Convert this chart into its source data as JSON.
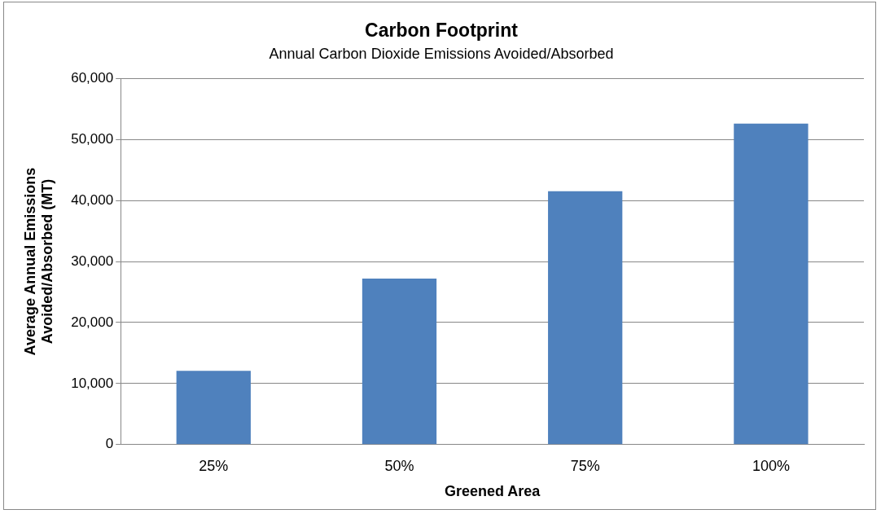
{
  "chart_data": {
    "type": "bar",
    "title": "Carbon Footprint",
    "subtitle": "Annual Carbon Dioxide Emissions Avoided/Absorbed",
    "xlabel": "Greened Area",
    "ylabel": "Average Annual Emissions Avoided/Absorbed (MT)",
    "categories": [
      "25%",
      "50%",
      "75%",
      "100%"
    ],
    "series": [
      {
        "color": "#4f81bd",
        "values": [
          12100,
          27200,
          41500,
          52600
        ]
      }
    ],
    "ylim": [
      0,
      60000
    ],
    "yticks": [
      {
        "value": 0,
        "label": "0"
      },
      {
        "value": 10000,
        "label": "10,000"
      },
      {
        "value": 20000,
        "label": "20,000"
      },
      {
        "value": 30000,
        "label": "30,000"
      },
      {
        "value": 40000,
        "label": "40,000"
      },
      {
        "value": 50000,
        "label": "50,000"
      },
      {
        "value": 60000,
        "label": "60,000"
      }
    ],
    "grid": "y",
    "legend": false
  }
}
